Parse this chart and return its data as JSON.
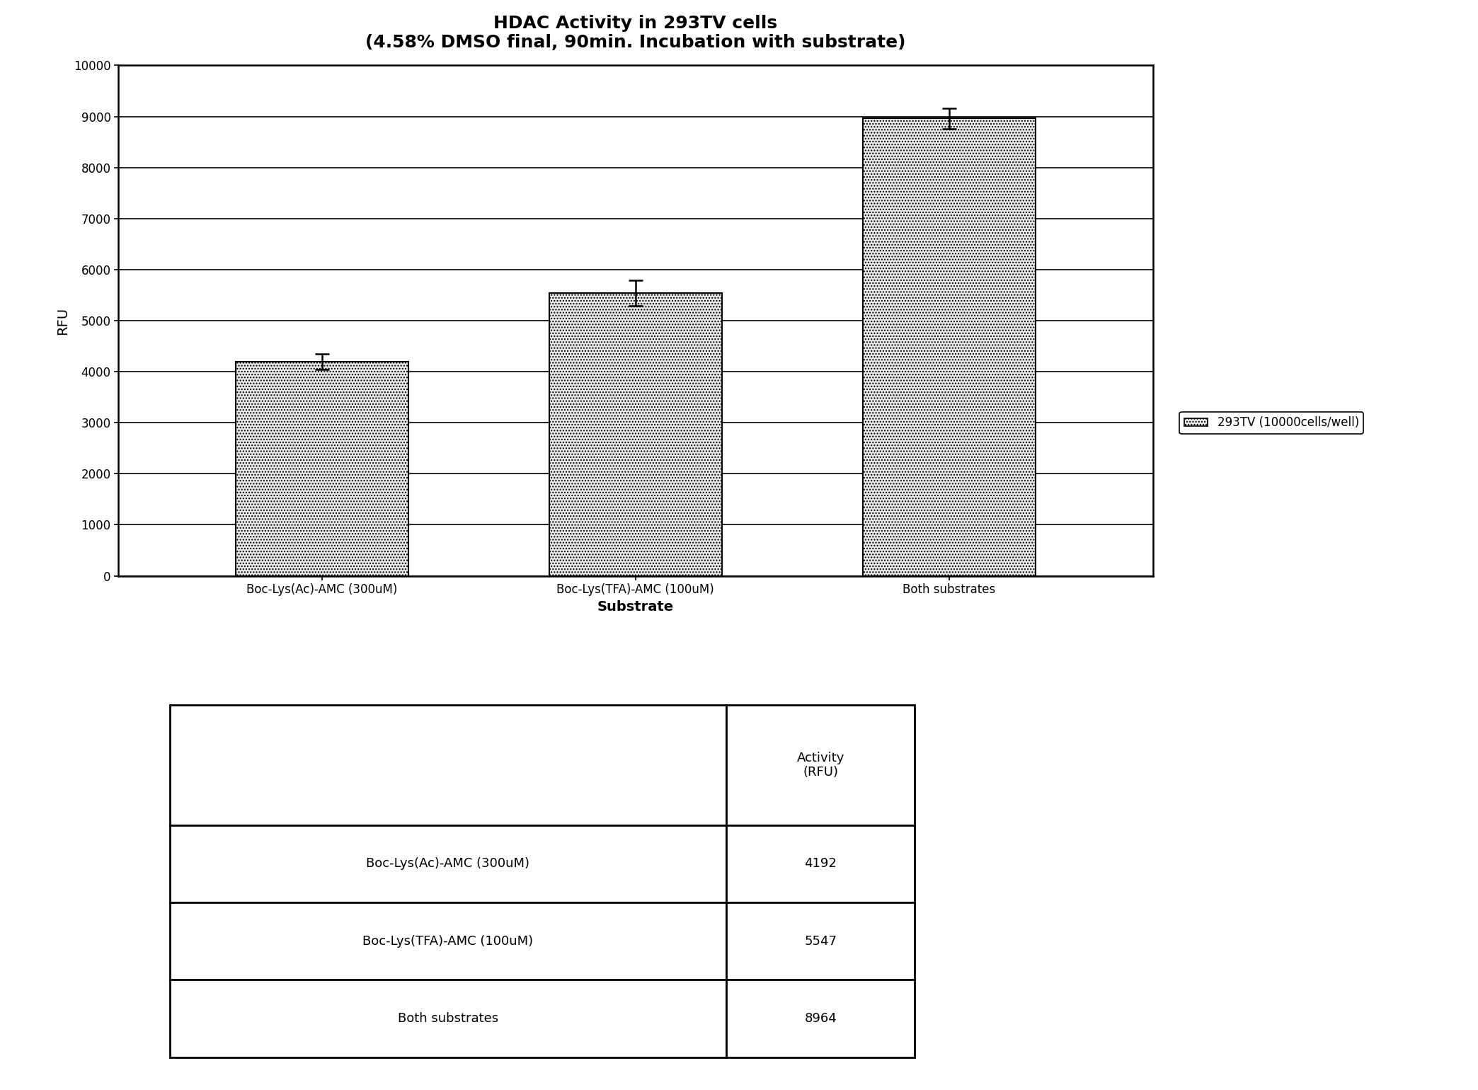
{
  "title": "HDAC Activity in 293TV cells",
  "subtitle": "(4.58% DMSO final, 90min. Incubation with substrate)",
  "categories": [
    "Boc-Lys(Ac)-AMC (300uM)",
    "Boc-Lys(TFA)-AMC (100uM)",
    "Both substrates"
  ],
  "values": [
    4192,
    5547,
    8964
  ],
  "errors": [
    150,
    250,
    200
  ],
  "ylabel": "RFU",
  "xlabel": "Substrate",
  "ylim": [
    0,
    10000
  ],
  "yticks": [
    0,
    1000,
    2000,
    3000,
    4000,
    5000,
    6000,
    7000,
    8000,
    9000,
    10000
  ],
  "bar_color": "#e8e8e8",
  "bar_edgecolor": "#000000",
  "legend_label": "293TV (10000cells/well)",
  "legend_box_color": "#e8e8e8",
  "table_header": [
    "",
    "Activity\n(RFU)"
  ],
  "table_rows": [
    [
      "Boc-Lys(Ac)-AMC (300uM)",
      "4192"
    ],
    [
      "Boc-Lys(TFA)-AMC (100uM)",
      "5547"
    ],
    [
      "Both substrates",
      "8964"
    ]
  ],
  "background_color": "#ffffff",
  "title_fontsize": 18,
  "subtitle_fontsize": 15,
  "axis_label_fontsize": 14,
  "tick_fontsize": 12,
  "legend_fontsize": 12,
  "table_fontsize": 13
}
